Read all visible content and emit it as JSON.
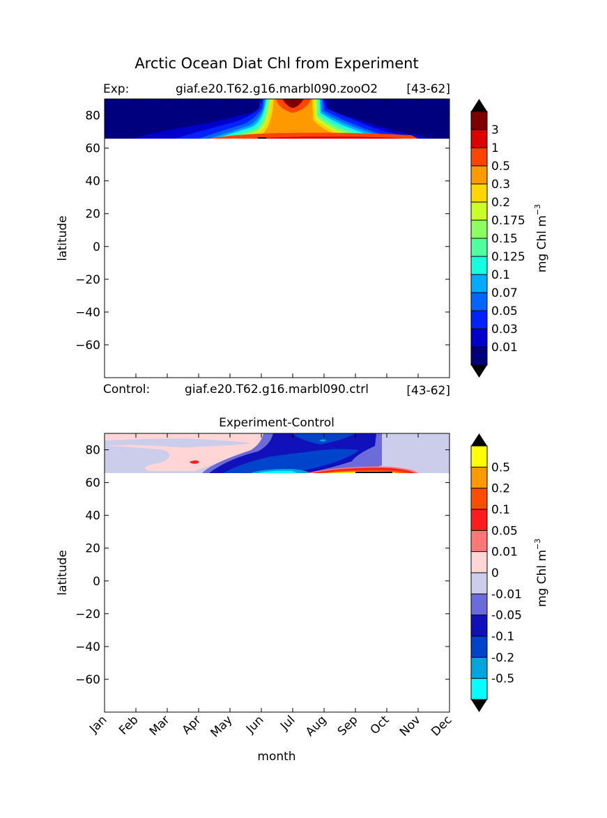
{
  "chart_data": [
    {
      "type": "heatmap",
      "title": "Arctic Ocean Diat Chl from Experiment",
      "subtitle_left": "Exp:",
      "subtitle_center": "giaf.e20.T62.g16.marbl090.zooO2",
      "subtitle_right": "[43-62]",
      "ylabel": "latitude",
      "ylim": [
        -80,
        90
      ],
      "yticks": [
        "80",
        "60",
        "40",
        "20",
        "0",
        "−20",
        "−40",
        "−60"
      ],
      "ytick_values": [
        80,
        60,
        40,
        20,
        0,
        -20,
        -40,
        -60
      ],
      "data_lat_range": [
        66,
        90
      ],
      "colorbar": {
        "label_text": "mg Chl m",
        "label_exp": "−3",
        "levels": [
          "0.01",
          "0.03",
          "0.05",
          "0.07",
          "0.1",
          "0.125",
          "0.15",
          "0.175",
          "0.2",
          "0.3",
          "0.5",
          "1",
          "3"
        ],
        "colors": [
          "#00007f",
          "#0000cc",
          "#0022ff",
          "#0066ff",
          "#00aaff",
          "#16ffe1",
          "#50ff9e",
          "#8dff62",
          "#c9ff26",
          "#ffd700",
          "#ff9900",
          "#ff4500",
          "#dd0000",
          "#7f0000"
        ],
        "extend": "both"
      }
    },
    {
      "type": "heatmap",
      "control_left": "Control:",
      "control_center": "giaf.e20.T62.g16.marbl090.ctrl",
      "control_right": "[43-62]",
      "title": "Experiment-Control",
      "ylabel": "latitude",
      "xlabel": "month",
      "ylim": [
        -80,
        90
      ],
      "yticks": [
        "80",
        "60",
        "40",
        "20",
        "0",
        "−20",
        "−40",
        "−60"
      ],
      "ytick_values": [
        80,
        60,
        40,
        20,
        0,
        -20,
        -40,
        -60
      ],
      "categories": [
        "Jan",
        "Feb",
        "Mar",
        "Apr",
        "May",
        "Jun",
        "Jul",
        "Aug",
        "Sep",
        "Oct",
        "Nov",
        "Dec"
      ],
      "data_lat_range": [
        66,
        90
      ],
      "colorbar": {
        "label_text": "mg Chl m",
        "label_exp": "−3",
        "levels": [
          "-0.5",
          "-0.2",
          "-0.1",
          "-0.05",
          "-0.01",
          "0",
          "0.01",
          "0.05",
          "0.1",
          "0.2",
          "0.5"
        ],
        "colors": [
          "#00ffff",
          "#00a4e0",
          "#0044cc",
          "#1111bb",
          "#6b6bd9",
          "#cccceb",
          "#ffd5d5",
          "#ff7777",
          "#ff1c1c",
          "#ff4d00",
          "#ff9900",
          "#ffff00"
        ],
        "extend": "both"
      }
    }
  ]
}
